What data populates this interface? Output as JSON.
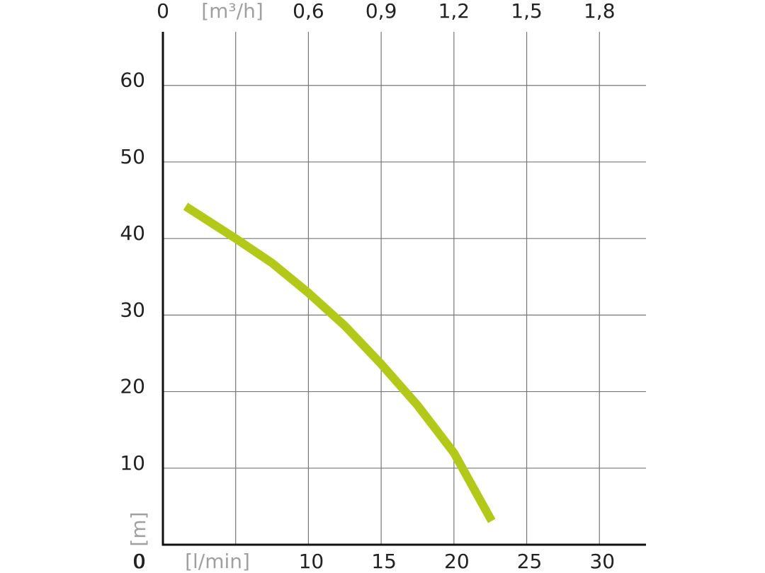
{
  "chart_data": {
    "type": "line",
    "x_label": "[l/min]",
    "x2_label": "[m³/h]",
    "y_label": "[m]",
    "xlim": [
      0,
      33.2
    ],
    "xticks": [
      0,
      5,
      10,
      15,
      20,
      25,
      30
    ],
    "x2lim": [
      0,
      1.992
    ],
    "x2ticks": [
      0,
      {
        "value": 0.6,
        "label": "0,6"
      },
      {
        "value": 0.9,
        "label": "0,9"
      },
      {
        "value": 1.2,
        "label": "1,2"
      },
      {
        "value": 1.5,
        "label": "1,5"
      },
      {
        "value": 1.8,
        "label": "1,8"
      }
    ],
    "ylim": [
      0,
      67
    ],
    "yticks": [
      0,
      10,
      20,
      30,
      40,
      50,
      60
    ],
    "grid": true,
    "series": [
      {
        "color": "#b3c91a",
        "x": [
          1.56,
          5,
          7.5,
          10,
          12.5,
          15,
          17.5,
          20,
          22.6
        ],
        "values": [
          44.2,
          40,
          36.8,
          32.9,
          28.6,
          23.6,
          18.2,
          12,
          3.1
        ]
      }
    ]
  }
}
